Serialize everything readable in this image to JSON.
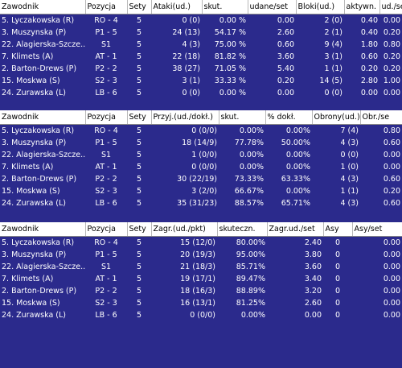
{
  "tables": [
    {
      "columns": [
        "Zawodnik",
        "Pozycja",
        "Sety",
        "Ataki(ud.)",
        "skut.",
        "udane/set",
        "Bloki(ud.)",
        "aktywn.",
        "ud./se"
      ],
      "rows": [
        [
          "5. Lyczakowska (R)",
          "RO - 4",
          "5",
          "0 (0)",
          "0.00 %",
          "0.00",
          "2 (0)",
          "0.40",
          "0.00"
        ],
        [
          "3. Muszynska (P)",
          "P1 - 5",
          "5",
          "24 (13)",
          "54.17 %",
          "2.60",
          "2 (1)",
          "0.40",
          "0.20"
        ],
        [
          "22. Alagierska-Szcze...",
          "S1",
          "5",
          "4 (3)",
          "75.00 %",
          "0.60",
          "9 (4)",
          "1.80",
          "0.80"
        ],
        [
          "7. Klimets (A)",
          "AT - 1",
          "5",
          "22 (18)",
          "81.82 %",
          "3.60",
          "3 (1)",
          "0.60",
          "0.20"
        ],
        [
          "2. Barton-Drews (P)",
          "P2 - 2",
          "5",
          "38 (27)",
          "71.05 %",
          "5.40",
          "1 (1)",
          "0.20",
          "0.20"
        ],
        [
          "15. Moskwa (S)",
          "S2 - 3",
          "5",
          "3 (1)",
          "33.33 %",
          "0.20",
          "14 (5)",
          "2.80",
          "1.00"
        ],
        [
          "24. Zurawska (L)",
          "LB - 6",
          "5",
          "0 (0)",
          "0.00 %",
          "0.00",
          "0 (0)",
          "0.00",
          "0.00"
        ]
      ]
    },
    {
      "columns": [
        "Zawodnik",
        "Pozycja",
        "Sety",
        "Przyj.(ud./dokł.)",
        "skut.",
        "% dokł.",
        "Obrony(ud.)",
        "Obr./se"
      ],
      "rows": [
        [
          "5. Lyczakowska (R)",
          "RO - 4",
          "5",
          "0 (0/0)",
          "0.00%",
          "0.00%",
          "7 (4)",
          "0.80"
        ],
        [
          "3. Muszynska (P)",
          "P1 - 5",
          "5",
          "18 (14/9)",
          "77.78%",
          "50.00%",
          "4 (3)",
          "0.60"
        ],
        [
          "22. Alagierska-Szcze...",
          "S1",
          "5",
          "1 (0/0)",
          "0.00%",
          "0.00%",
          "0 (0)",
          "0.00"
        ],
        [
          "7. Klimets (A)",
          "AT - 1",
          "5",
          "0 (0/0)",
          "0.00%",
          "0.00%",
          "1 (0)",
          "0.00"
        ],
        [
          "2. Barton-Drews (P)",
          "P2 - 2",
          "5",
          "30 (22/19)",
          "73.33%",
          "63.33%",
          "4 (3)",
          "0.60"
        ],
        [
          "15. Moskwa (S)",
          "S2 - 3",
          "5",
          "3 (2/0)",
          "66.67%",
          "0.00%",
          "1 (1)",
          "0.20"
        ],
        [
          "24. Zurawska (L)",
          "LB - 6",
          "5",
          "35 (31/23)",
          "88.57%",
          "65.71%",
          "4 (3)",
          "0.60"
        ]
      ]
    },
    {
      "columns": [
        "Zawodnik",
        "Pozycja",
        "Sety",
        "Zagr.(ud./pkt)",
        "skuteczn.",
        "Zagr.ud./set",
        "Asy",
        "Asy/set"
      ],
      "rows": [
        [
          "5. Lyczakowska (R)",
          "RO - 4",
          "5",
          "15 (12/0)",
          "80.00%",
          "2.40",
          "0",
          "0.00"
        ],
        [
          "3. Muszynska (P)",
          "P1 - 5",
          "5",
          "20 (19/3)",
          "95.00%",
          "3.80",
          "0",
          "0.00"
        ],
        [
          "22. Alagierska-Szcze...",
          "S1",
          "5",
          "21 (18/3)",
          "85.71%",
          "3.60",
          "0",
          "0.00"
        ],
        [
          "7. Klimets (A)",
          "AT - 1",
          "5",
          "19 (17/1)",
          "89.47%",
          "3.40",
          "0",
          "0.00"
        ],
        [
          "2. Barton-Drews (P)",
          "P2 - 2",
          "5",
          "18 (16/3)",
          "88.89%",
          "3.20",
          "0",
          "0.00"
        ],
        [
          "15. Moskwa (S)",
          "S2 - 3",
          "5",
          "16 (13/1)",
          "81.25%",
          "2.60",
          "0",
          "0.00"
        ],
        [
          "24. Zurawska (L)",
          "LB - 6",
          "5",
          "0 (0/0)",
          "0.00%",
          "0.00",
          "0",
          "0.00"
        ]
      ]
    }
  ]
}
